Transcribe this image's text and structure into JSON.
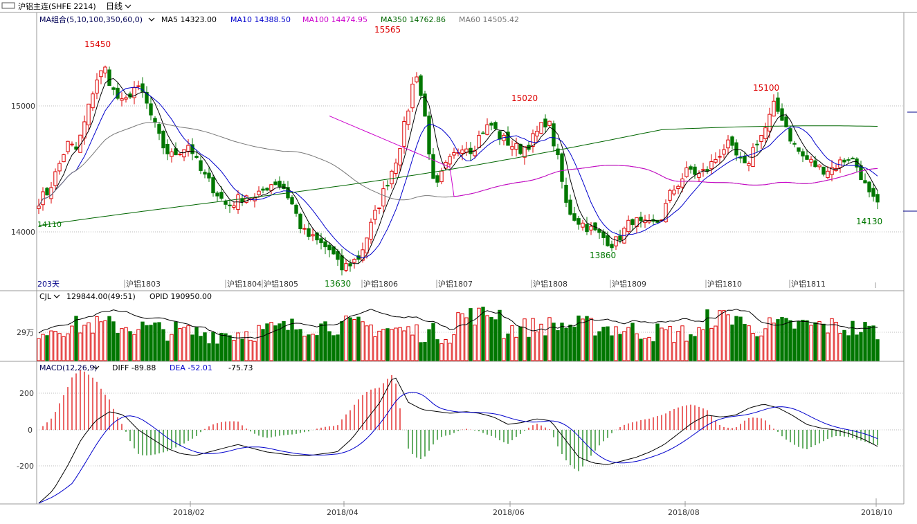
{
  "header": {
    "title": "沪铝主连(SHFE 2214)",
    "period": "日线"
  },
  "colors": {
    "up": "#dd0000",
    "down": "#007700",
    "ma5": "#000000",
    "ma10": "#0000cc",
    "ma100": "#cc00cc",
    "ma350": "#006600",
    "ma60": "#777777",
    "grid": "#bbbbbb"
  },
  "price_panel": {
    "legend": {
      "group": "MA组合(5,10,100,350,60,0)",
      "ma5": "MA5 14323.00",
      "ma10": "MA10 14388.50",
      "ma100": "MA100 14474.95",
      "ma350": "MA350 14762.86",
      "ma60": "MA60 14505.42"
    },
    "y_ticks": [
      "15000",
      "14000"
    ],
    "day_count": "203天",
    "contract_labels": [
      "沪铝1803",
      "沪铝1804",
      "沪铝1805",
      "沪铝1806",
      "沪铝1807",
      "沪铝1808",
      "沪铝1809",
      "沪铝1810",
      "沪铝1811"
    ],
    "annotations": [
      "15450",
      "15565",
      "15020",
      "15100",
      "13630",
      "13860",
      "14130",
      "14110"
    ]
  },
  "volume_panel": {
    "legend": {
      "name": "CJL",
      "cjl": "129844.00(49:51)",
      "opid": "OPID 190950.00"
    },
    "y_ticks": [
      "29万"
    ]
  },
  "macd_panel": {
    "legend": {
      "name": "MACD(12,26,9)",
      "diff": "DIFF -89.88",
      "dea": "DEA -52.01",
      "macd": "-75.73"
    },
    "y_ticks": [
      "200",
      "0",
      "-200"
    ]
  },
  "x_ticks": [
    "2018/02",
    "2018/04",
    "2018/06",
    "2018/08",
    "2018/10"
  ],
  "chart_data": {
    "type": "candlestick",
    "title": "沪铝主连(SHFE 2214)",
    "period": "日线",
    "x_range": [
      "2018-01",
      "2018-10"
    ],
    "ylim": [
      13500,
      15900
    ],
    "key_points": [
      {
        "label": "15450",
        "type": "high",
        "value": 15450
      },
      {
        "label": "15565",
        "type": "high",
        "value": 15565
      },
      {
        "label": "15020",
        "type": "high",
        "value": 15020
      },
      {
        "label": "15100",
        "type": "high",
        "value": 15100
      },
      {
        "label": "13630",
        "type": "low",
        "value": 13630
      },
      {
        "label": "13860",
        "type": "low",
        "value": 13860
      },
      {
        "label": "14130",
        "type": "low",
        "value": 14130
      },
      {
        "label": "14110",
        "type": "low",
        "value": 14110
      }
    ],
    "moving_averages": {
      "MA5": 14323.0,
      "MA10": 14388.5,
      "MA100": 14474.95,
      "MA350": 14762.86,
      "MA60": 14505.42
    },
    "close_path": [
      14250,
      14320,
      14500,
      14700,
      14650,
      14900,
      15200,
      15300,
      15100,
      15000,
      15150,
      15100,
      14900,
      14700,
      14600,
      14650,
      14700,
      14500,
      14400,
      14300,
      14200,
      14250,
      14300,
      14250,
      14350,
      14400,
      14350,
      14200,
      14000,
      13950,
      13900,
      13850,
      13700,
      13750,
      13800,
      14000,
      14200,
      14400,
      14600,
      14900,
      15300,
      14900,
      14300,
      14500,
      14600,
      14700,
      14650,
      14800,
      14850,
      14750,
      14700,
      14650,
      14700,
      14800,
      14900,
      14600,
      14200,
      14100,
      14050,
      14000,
      13950,
      13900,
      14000,
      14100,
      14050,
      14050,
      14100,
      14300,
      14400,
      14500,
      14450,
      14500,
      14600,
      14700,
      14600,
      14500,
      14700,
      14800,
      15000,
      14900,
      14700,
      14600,
      14550,
      14500,
      14500,
      14550,
      14600,
      14500,
      14300,
      14200
    ],
    "volume": {
      "unit_tick": "29万",
      "cjl": 129844.0,
      "opid": 190950.0
    },
    "macd": {
      "params": [
        12,
        26,
        9
      ],
      "diff": -89.88,
      "dea": -52.01,
      "macd": -75.73,
      "ylim": [
        -400,
        300
      ],
      "diff_path": [
        -400,
        -330,
        -200,
        -50,
        50,
        100,
        80,
        0,
        -50,
        -100,
        -130,
        -140,
        -120,
        -100,
        -80,
        -100,
        -120,
        -130,
        -140,
        -140,
        -130,
        -120,
        -50,
        50,
        150,
        300,
        150,
        110,
        100,
        90,
        100,
        90,
        70,
        30,
        40,
        60,
        50,
        -50,
        -150,
        -180,
        -190,
        -170,
        -150,
        -120,
        -80,
        -20,
        40,
        80,
        70,
        80,
        120,
        140,
        120,
        80,
        30,
        10,
        0,
        -20,
        -50,
        -90
      ]
    }
  }
}
